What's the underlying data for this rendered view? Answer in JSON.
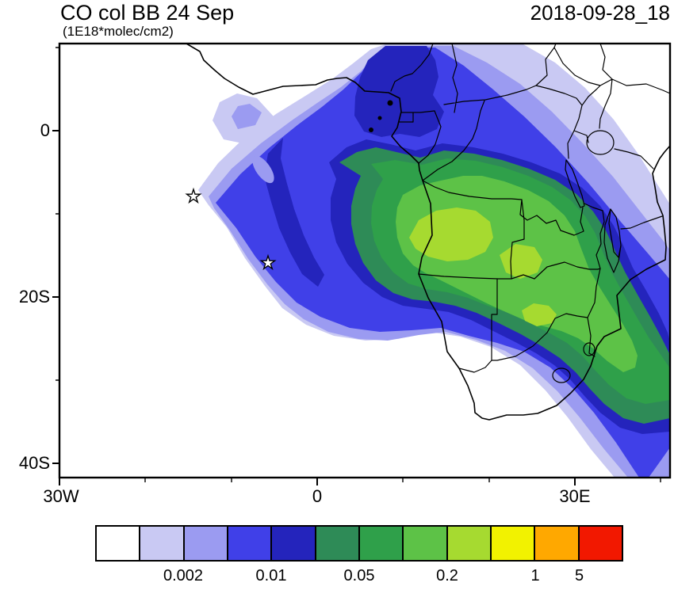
{
  "header": {
    "title": "CO col BB 24 Sep",
    "units_label": "(1E18*molec/cm2)",
    "datestamp": "2018-09-28_18"
  },
  "axes": {
    "y_tick_labels": [
      "0",
      "20S",
      "40S"
    ],
    "x_tick_labels": [
      "30W",
      "0",
      "30E"
    ]
  },
  "chart_data": {
    "type": "heatmap",
    "title": "CO col BB 24 Sep",
    "units": "1E18*molec/cm2",
    "valid_time": "2018-09-28_18",
    "region": {
      "lon_range_deg": [
        -30,
        41
      ],
      "lat_range_deg": [
        -41.5,
        10.5
      ]
    },
    "x_axis": {
      "tick_labels": [
        "30W",
        "0",
        "30E"
      ],
      "tick_lons_deg": [
        -30,
        0,
        30
      ]
    },
    "y_axis": {
      "tick_labels": [
        "0",
        "20S",
        "40S"
      ],
      "tick_lats_deg": [
        0,
        -20,
        -40
      ]
    },
    "grid": false,
    "colorbar": {
      "position": "bottom",
      "labels": [
        "0.002",
        "0.01",
        "0.05",
        "0.2",
        "1",
        "5"
      ],
      "label_boundary_indices": [
        2,
        4,
        6,
        8,
        10,
        11
      ],
      "colors": [
        "#ffffff",
        "#c9c9f3",
        "#9b9bf1",
        "#4040e8",
        "#2424bc",
        "#2e8b57",
        "#2fa04a",
        "#5dc247",
        "#a6da30",
        "#f2f200",
        "#ffa800",
        "#f21800"
      ]
    },
    "field_summary": "Filled contours of biomass-burning CO column over Africa and the South Atlantic. A broad plume stretches from the Gulf of Guinea across Gabon, Congo, DRC, Angola, Zambia and Zimbabwe to the Mozambique Channel; highest values (yellow-green, around 0.5) over Angola/DRC/Zambia and a secondary maximum near Zimbabwe/Limpopo. A plume arm extends northwest over the Atlantic; a dark-blue maximum sits over Nigeria/Cameroon near the coast. White (below lowest contour) over the northwest ocean, East Africa and the far south.",
    "markers": [
      {
        "symbol": "open-star",
        "approx_lon_deg": -14.5,
        "approx_lat_deg": -8
      },
      {
        "symbol": "open-star",
        "approx_lon_deg": -5.7,
        "approx_lat_deg": -16
      }
    ],
    "map_overlays": [
      "Africa coastline",
      "country borders",
      "Lake Victoria",
      "Lake Tanganyika",
      "Lake Malawi",
      "Gulf of Guinea islands"
    ]
  }
}
